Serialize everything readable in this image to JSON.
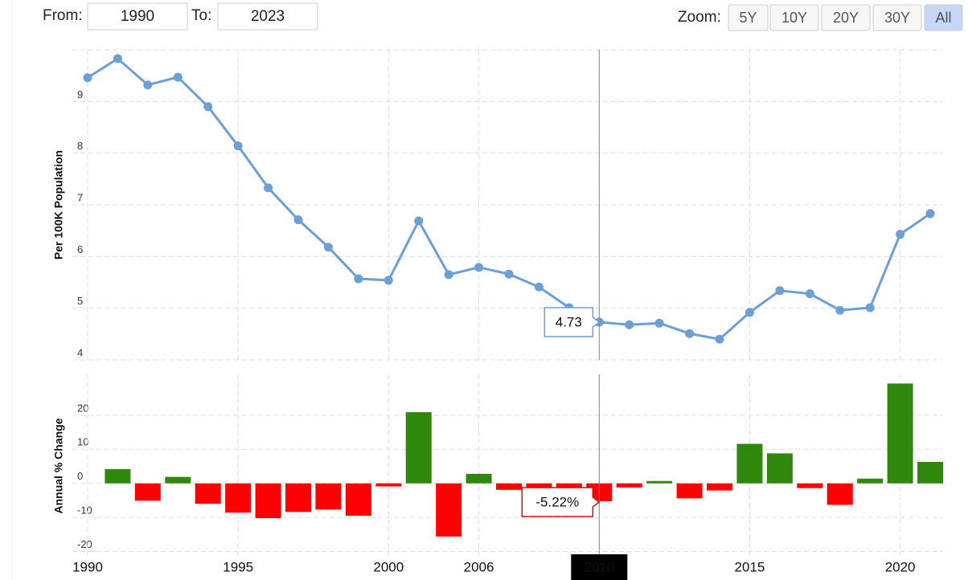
{
  "controls": {
    "from_label": "From:",
    "from": "1990",
    "to_label": "To:",
    "to": "2023",
    "zoom_label": "Zoom:",
    "zoom": [
      "5Y",
      "10Y",
      "20Y",
      "30Y",
      "All"
    ],
    "active_zoom": 4
  },
  "chart_data": [
    {
      "type": "line",
      "y_label": "Per 100K Population",
      "color": "#6b9fd6",
      "values": [
        9.46,
        9.83,
        9.32,
        9.47,
        8.9,
        8.14,
        7.33,
        6.71,
        6.18,
        5.57,
        5.54,
        6.69,
        5.65,
        5.79,
        5.66,
        5.41,
        5.01,
        4.73,
        4.68,
        4.71,
        4.51,
        4.4,
        4.92,
        5.34,
        5.28,
        4.96,
        5.01,
        6.43,
        6.83
      ],
      "value_labels": [
        null,
        null,
        null,
        null,
        null,
        null,
        null,
        null,
        null,
        null,
        null,
        null,
        null,
        null,
        null,
        null,
        null,
        "4.73",
        null,
        null,
        null,
        null,
        null,
        null,
        null,
        null,
        null,
        null,
        null
      ],
      "ylim": [
        4,
        10
      ],
      "yticks": [
        4,
        5,
        6,
        7,
        8,
        9
      ],
      "grid": true
    },
    {
      "type": "bar",
      "y_label": "Annual % Change",
      "positive_color": "#2f870c",
      "negative_color": "#ff0000",
      "categories": [
        "1990",
        null,
        null,
        null,
        null,
        "1995",
        null,
        null,
        null,
        null,
        "2000",
        null,
        null,
        "2006",
        null,
        null,
        null,
        "2010",
        null,
        null,
        null,
        null,
        "2015",
        null,
        null,
        null,
        null,
        "2020",
        null
      ],
      "values": [
        null,
        4.2,
        -5.1,
        1.9,
        -6.0,
        -8.6,
        -10.2,
        -8.4,
        -7.7,
        -9.5,
        -0.9,
        20.9,
        -15.6,
        2.8,
        -1.9,
        -4.4,
        -7.4,
        -5.22,
        -1.2,
        0.7,
        -4.4,
        -2.1,
        11.6,
        8.8,
        -1.4,
        -6.3,
        1.4,
        29.3,
        6.3
      ],
      "value_labels": [
        null,
        null,
        null,
        null,
        null,
        null,
        null,
        null,
        null,
        null,
        null,
        null,
        null,
        null,
        null,
        null,
        null,
        "-5.22%",
        null,
        null,
        null,
        null,
        null,
        null,
        null,
        null,
        null,
        null,
        null
      ],
      "ylim": [
        -22,
        32
      ],
      "yticks": [
        -20,
        -10,
        0,
        10,
        20
      ],
      "grid": true
    }
  ]
}
